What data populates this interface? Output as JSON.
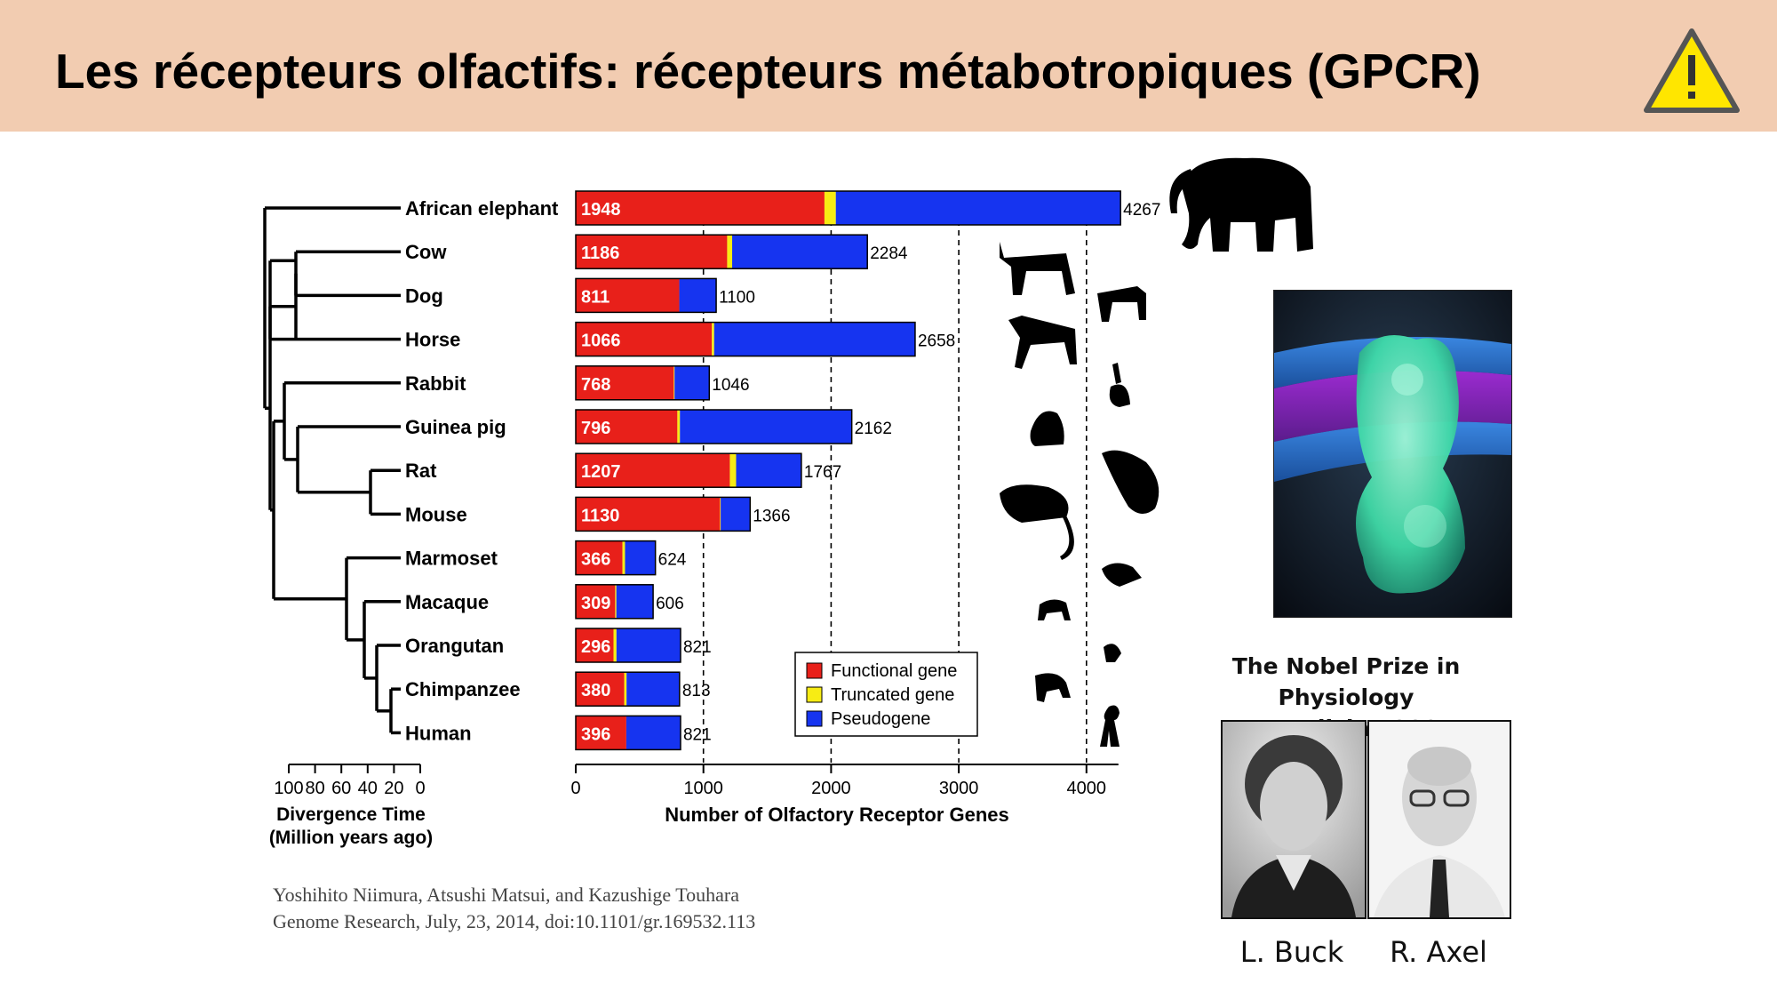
{
  "slide": {
    "title": "Les récepteurs olfactifs: récepteurs métabotropiques (GPCR)",
    "warning_icon": "warning-triangle-icon"
  },
  "chart_data": {
    "type": "bar",
    "stacked": true,
    "orientation": "horizontal",
    "categories": [
      "African elephant",
      "Cow",
      "Dog",
      "Horse",
      "Rabbit",
      "Guinea pig",
      "Rat",
      "Mouse",
      "Marmoset",
      "Macaque",
      "Orangutan",
      "Chimpanzee",
      "Human"
    ],
    "series": [
      {
        "name": "Functional gene",
        "color": "#e8201a",
        "values": [
          1948,
          1186,
          811,
          1066,
          768,
          796,
          1207,
          1130,
          366,
          309,
          296,
          380,
          396
        ]
      },
      {
        "name": "Truncated gene",
        "color": "#f7ec14",
        "values": [
          89,
          39,
          0,
          18,
          6,
          20,
          49,
          5,
          20,
          9,
          23,
          18,
          0
        ]
      },
      {
        "name": "Pseudogene",
        "color": "#1634f0",
        "values": [
          2230,
          1059,
          289,
          1574,
          272,
          1346,
          511,
          231,
          238,
          288,
          502,
          415,
          425
        ]
      }
    ],
    "totals": [
      4267,
      2284,
      1100,
      2658,
      1046,
      2162,
      1767,
      1366,
      624,
      606,
      821,
      813,
      821
    ],
    "xlabel": "Number of Olfactory Receptor Genes",
    "xlim": [
      0,
      4250
    ],
    "xticks": [
      0,
      1000,
      2000,
      3000,
      4000
    ],
    "gridlines": "dashed vertical at 1000, 2000, 3000, 4000",
    "legend_position": "bottom-right"
  },
  "tree": {
    "axis_label_line1": "Divergence Time",
    "axis_label_line2": "(Million years ago)",
    "ticks": [
      "100",
      "80",
      "60",
      "40",
      "20",
      "0"
    ]
  },
  "citation": {
    "line1": "Yoshihito Niimura, Atsushi Matsui, and Kazushige Touhara",
    "line2": "Genome Research, July, 23, 2014, doi:10.1101/gr.169532.113"
  },
  "nobel": {
    "title_line1": "The Nobel Prize in Physiology",
    "title_line2": "or Medicine 2004",
    "laureates": [
      "L. Buck",
      "R. Axel"
    ]
  },
  "colors": {
    "title_bar": "#f2ccb1",
    "functional": "#e8201a",
    "truncated": "#f7ec14",
    "pseudogene": "#1634f0"
  }
}
